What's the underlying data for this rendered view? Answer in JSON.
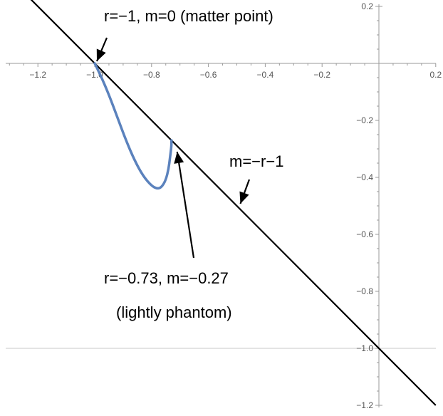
{
  "chart_data": {
    "type": "line",
    "xlim": [
      -1.3,
      0.2
    ],
    "ylim": [
      -1.2,
      0.2
    ],
    "x_ticks": [
      -1.2,
      -1.0,
      -0.8,
      -0.6,
      -0.4,
      -0.2,
      0.2
    ],
    "x_tick_labels": [
      "−1.2",
      "−1.0",
      "−0.8",
      "−0.6",
      "−0.4",
      "−0.2",
      "0.2"
    ],
    "y_ticks": [
      0.2,
      -0.2,
      -0.4,
      -0.6,
      -0.8,
      -1.0,
      -1.2
    ],
    "y_tick_labels": [
      "0.2",
      "−0.2",
      "−0.4",
      "−0.6",
      "−0.8",
      "−1.0",
      "−1.2"
    ],
    "grid": false,
    "horizontal_guide_y": -1.0,
    "series": [
      {
        "label": "m=−r−1",
        "color": "#000000",
        "x": [
          -1.3,
          0.2
        ],
        "y": [
          0.3,
          -1.2
        ]
      },
      {
        "color": "#5b82bd",
        "x": [
          -1.0,
          -0.98,
          -0.95,
          -0.92,
          -0.89,
          -0.86,
          -0.83,
          -0.8,
          -0.78,
          -0.765,
          -0.75,
          -0.74,
          -0.735,
          -0.73,
          -0.73
        ],
        "y": [
          0.0,
          -0.04,
          -0.11,
          -0.19,
          -0.27,
          -0.34,
          -0.395,
          -0.43,
          -0.44,
          -0.435,
          -0.41,
          -0.37,
          -0.33,
          -0.29,
          -0.27
        ]
      }
    ],
    "annotations": [
      {
        "text": "r=−1, m=0 (matter point)",
        "point": [
          -1.0,
          0.0
        ]
      },
      {
        "text": "m=−r−1",
        "point": [
          -0.49,
          -0.49
        ]
      },
      {
        "text": "r=−0.73, m=−0.27",
        "text2": "(lightly phantom)",
        "point": [
          -0.73,
          -0.29
        ]
      }
    ]
  }
}
